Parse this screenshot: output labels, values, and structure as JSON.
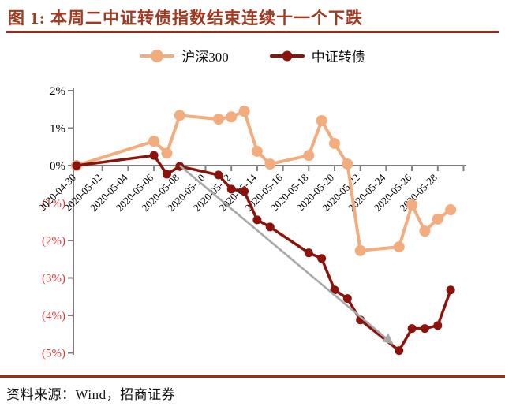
{
  "title": "图 1:  本周二中证转债指数结束连续十一个下跌",
  "footer": {
    "source_label": "资料来源：Wind，招商证券"
  },
  "colors": {
    "title_text": "#A23A22",
    "rule": "#9C2B1C",
    "axis": "#808080",
    "tick_label": "#000000",
    "negative_label": "#DD3333",
    "arrow": "#A8A8A8",
    "hs300": "#F2AC7D",
    "zhongzheng": "#8B130B"
  },
  "chart_data": {
    "type": "line",
    "title": "本周二中证转债指数结束连续十一个下跌",
    "unit": "cumulative % change since 2020-04-30",
    "x": [
      "2020-04-30",
      "2020-05-06",
      "2020-05-07",
      "2020-05-08",
      "2020-05-11",
      "2020-05-12",
      "2020-05-13",
      "2020-05-14",
      "2020-05-15",
      "2020-05-18",
      "2020-05-19",
      "2020-05-20",
      "2020-05-21",
      "2020-05-22",
      "2020-05-25",
      "2020-05-26",
      "2020-05-27",
      "2020-05-28",
      "2020-05-29"
    ],
    "series": [
      {
        "name": "沪深300",
        "color": "#F2AC7D",
        "line_width": 4,
        "marker_radius": 7,
        "values": [
          0,
          0.65,
          0.33,
          1.34,
          1.24,
          1.3,
          1.45,
          0.38,
          0.04,
          0.27,
          1.2,
          0.59,
          0.04,
          -2.27,
          -2.17,
          -1.05,
          -1.75,
          -1.43,
          -1.18
        ]
      },
      {
        "name": "中证转债",
        "color": "#8B130B",
        "line_width": 3.5,
        "marker_radius": 5.5,
        "values": [
          0,
          0.27,
          -0.23,
          -0.02,
          -0.25,
          -0.63,
          -0.69,
          -1.45,
          -1.64,
          -2.33,
          -2.48,
          -3.32,
          -3.55,
          -4.12,
          -4.94,
          -4.35,
          -4.35,
          -4.27,
          -3.32
        ]
      }
    ],
    "x_ticks": [
      "2020-04-30",
      "2020-05-02",
      "2020-05-04",
      "2020-05-06",
      "2020-05-08",
      "2020-05-10",
      "2020-05-12",
      "2020-05-14",
      "2020-05-16",
      "2020-05-18",
      "2020-05-20",
      "2020-05-22",
      "2020-05-24",
      "2020-05-26",
      "2020-05-28"
    ],
    "y_ticks": [
      "2%",
      "1%",
      "0%",
      "(1%)",
      "(2%)",
      "(3%)",
      "(4%)",
      "(5%)"
    ],
    "ylim": [
      -5,
      2
    ],
    "grid": false,
    "legend_position": "top-center",
    "arrow": {
      "from": {
        "date": "2020-05-08",
        "value": 0
      },
      "to": {
        "date": "2020-05-25",
        "value": -4.9
      }
    }
  }
}
